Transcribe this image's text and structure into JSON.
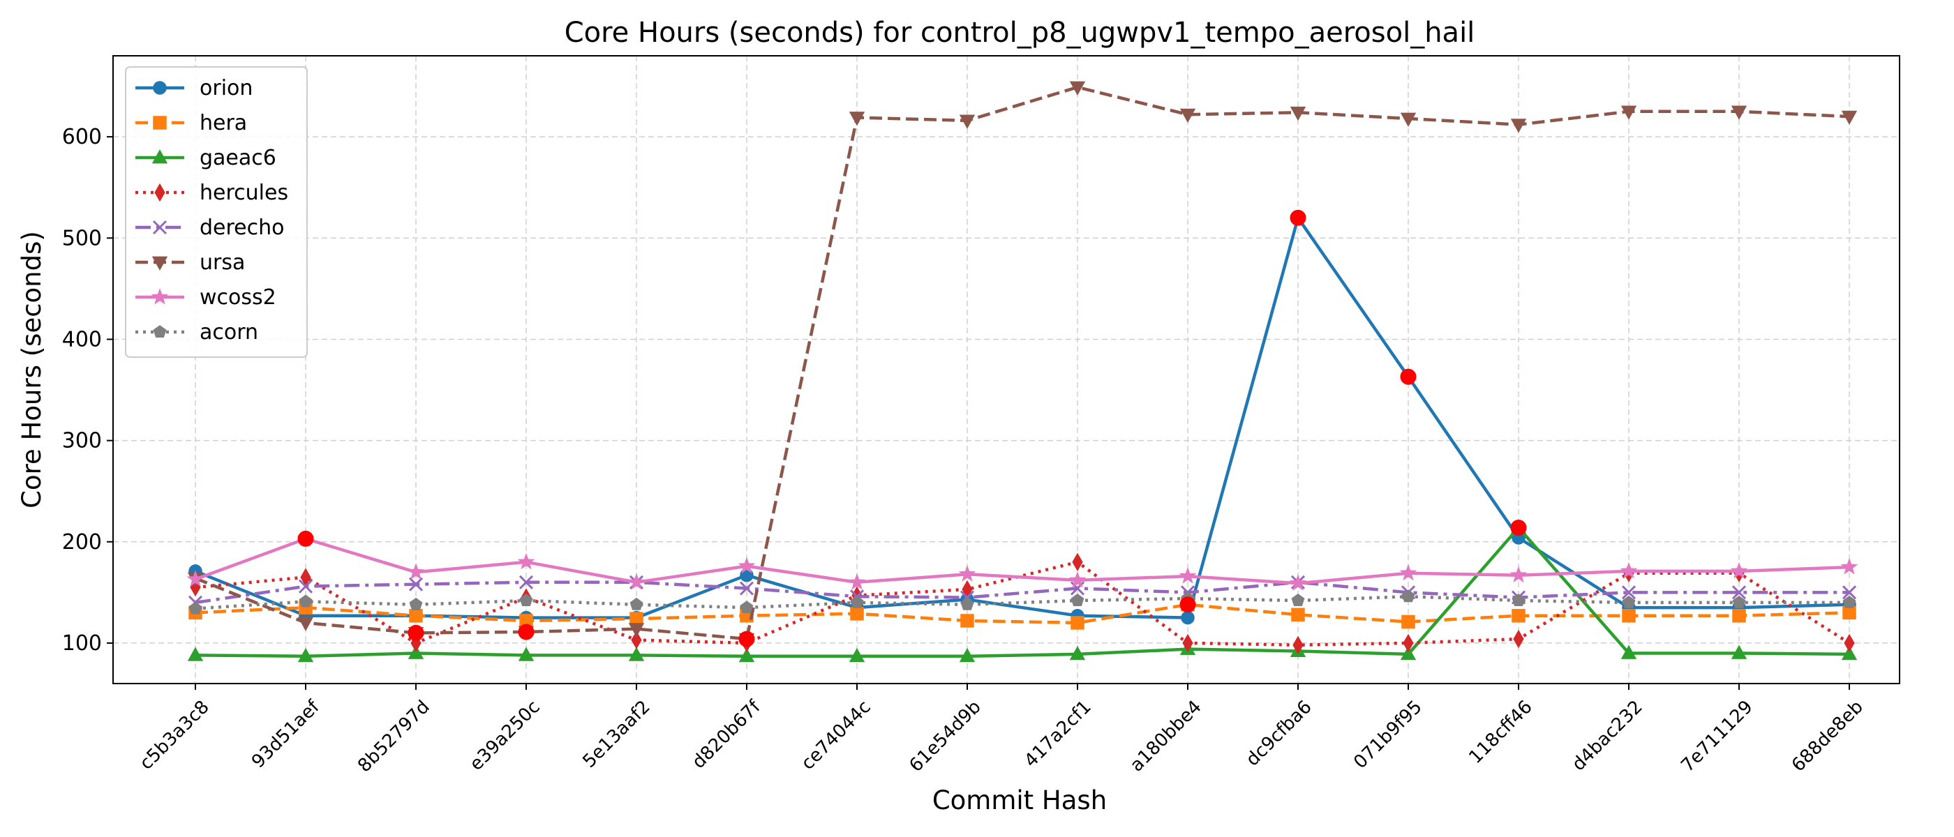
{
  "chart_data": {
    "type": "line",
    "title": "Core Hours (seconds) for control_p8_ugwpv1_tempo_aerosol_hail",
    "xlabel": "Commit Hash",
    "ylabel": "Core Hours (seconds)",
    "categories": [
      "c5b3a3c8",
      "93d51aef",
      "8b52797d",
      "e39a250c",
      "5e13aaf2",
      "d820b67f",
      "ce74044c",
      "61e54d9b",
      "417a2cf1",
      "a180bbe4",
      "dc9cfba6",
      "071b9f95",
      "118cff46",
      "d4bac232",
      "7e711129",
      "688de8eb"
    ],
    "ylim": [
      60,
      680
    ],
    "yticks": [
      100,
      200,
      300,
      400,
      500,
      600
    ],
    "grid": true,
    "legend_position": "top-left",
    "series": [
      {
        "name": "orion",
        "color": "#1f77b4",
        "marker": "circle",
        "dash": "solid",
        "values": [
          171,
          127,
          127,
          125,
          125,
          167,
          135,
          143,
          127,
          125,
          520,
          363,
          204,
          135,
          135,
          138
        ]
      },
      {
        "name": "hera",
        "color": "#ff7f0e",
        "marker": "square",
        "dash": "dashed",
        "values": [
          130,
          135,
          127,
          122,
          124,
          127,
          129,
          122,
          120,
          138,
          128,
          121,
          127,
          127,
          127,
          130
        ]
      },
      {
        "name": "gaeac6",
        "color": "#2ca02c",
        "marker": "triangle-up",
        "dash": "solid",
        "values": [
          88,
          87,
          90,
          88,
          88,
          87,
          87,
          87,
          89,
          94,
          92,
          89,
          214,
          90,
          90,
          89
        ]
      },
      {
        "name": "hercules",
        "color": "#d62728",
        "marker": "thin-diamond",
        "dash": "dotted",
        "values": [
          155,
          165,
          100,
          145,
          103,
          100,
          147,
          153,
          180,
          100,
          98,
          100,
          104,
          169,
          169,
          100
        ]
      },
      {
        "name": "derecho",
        "color": "#9467bd",
        "marker": "x",
        "dash": "dashdot",
        "values": [
          140,
          156,
          158,
          160,
          160,
          154,
          146,
          145,
          154,
          150,
          160,
          150,
          145,
          150,
          150,
          150
        ]
      },
      {
        "name": "ursa",
        "color": "#8c564b",
        "marker": "triangle-down",
        "dash": "dashed",
        "values": [
          164,
          120,
          110,
          111,
          114,
          104,
          619,
          616,
          649,
          622,
          624,
          618,
          612,
          625,
          625,
          620
        ]
      },
      {
        "name": "wcoss2",
        "color": "#e377c2",
        "marker": "star",
        "dash": "solid",
        "values": [
          163,
          203,
          170,
          180,
          160,
          176,
          160,
          168,
          162,
          166,
          159,
          169,
          167,
          171,
          171,
          175
        ]
      },
      {
        "name": "acorn",
        "color": "#7f7f7f",
        "marker": "pentagon",
        "dash": "dotted",
        "values": [
          134,
          141,
          138,
          142,
          138,
          135,
          140,
          138,
          142,
          144,
          142,
          146,
          142,
          140,
          140,
          140
        ]
      }
    ],
    "highlight_color": "#ff0000",
    "highlighted_points": [
      {
        "x": "93d51aef",
        "y": 203
      },
      {
        "x": "8b52797d",
        "y": 110
      },
      {
        "x": "e39a250c",
        "y": 111
      },
      {
        "x": "d820b67f",
        "y": 104
      },
      {
        "x": "a180bbe4",
        "y": 138
      },
      {
        "x": "dc9cfba6",
        "y": 520
      },
      {
        "x": "071b9f95",
        "y": 363
      },
      {
        "x": "118cff46",
        "y": 214
      }
    ]
  }
}
